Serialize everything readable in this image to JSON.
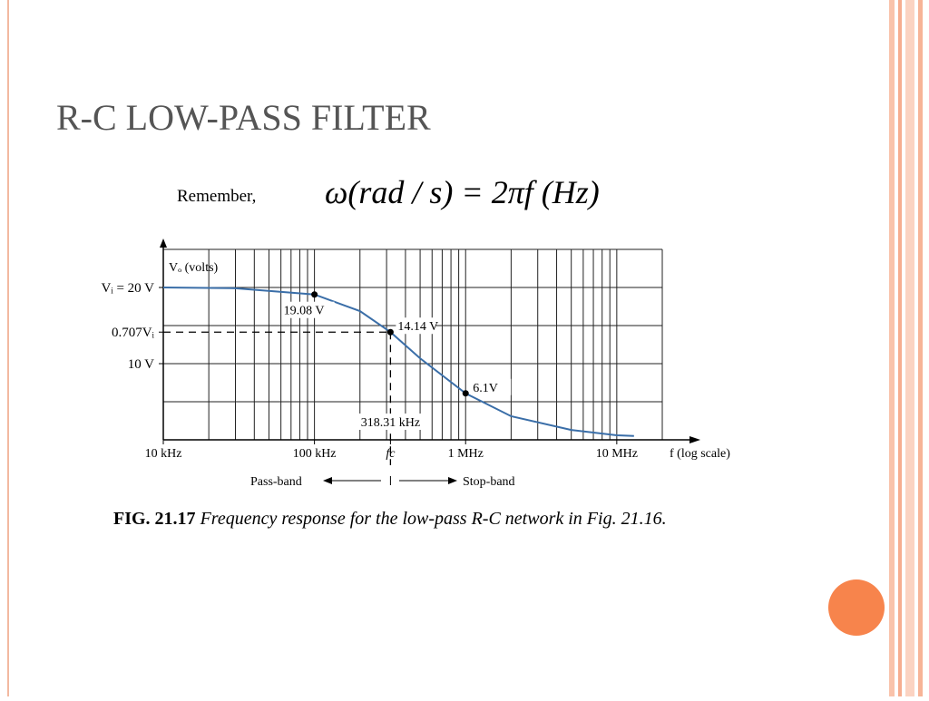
{
  "slide": {
    "title": "R-C LOW-PASS FILTER",
    "remember": "Remember,",
    "formula": "ω(rad / s) = 2πf (Hz)",
    "caption_label": "FIG. 21.17",
    "caption_text": "Frequency response for the low-pass R-C network in Fig. 21.16."
  },
  "chart_data": {
    "type": "line",
    "log_x": true,
    "grid": true,
    "x_label": "f (log scale)",
    "y_label": "Vₒ (volts)",
    "xlim": [
      10000,
      20000000
    ],
    "ylim": [
      0,
      25
    ],
    "xticks": [
      {
        "value": 10000,
        "label": "10 kHz"
      },
      {
        "value": 100000,
        "label": "100 kHz"
      },
      {
        "value": 318310,
        "label": "fc",
        "dashed": true
      },
      {
        "value": 1000000,
        "label": "1 MHz"
      },
      {
        "value": 10000000,
        "label": "10 MHz"
      }
    ],
    "yticks": [
      {
        "value": 20,
        "label": "Vᵢ = 20 V"
      },
      {
        "value": 14.14,
        "label": "0.707Vᵢ",
        "dashed": true
      },
      {
        "value": 10,
        "label": "10 V"
      }
    ],
    "xgrid": [
      10000,
      20000,
      30000,
      40000,
      50000,
      60000,
      70000,
      80000,
      90000,
      100000,
      200000,
      300000,
      400000,
      500000,
      600000,
      700000,
      800000,
      900000,
      1000000,
      2000000,
      3000000,
      4000000,
      5000000,
      6000000,
      7000000,
      8000000,
      9000000,
      10000000,
      20000000
    ],
    "ygrid": [
      0,
      5,
      10,
      15,
      20,
      25
    ],
    "fc_label": {
      "value": 318310,
      "label": "318.31 kHz"
    },
    "band_labels": [
      "Pass-band",
      "Stop-band"
    ],
    "series": [
      {
        "name": "Vo",
        "color": "#3a6ea8",
        "x": [
          10000,
          30000,
          100000,
          200000,
          318310,
          500000,
          1000000,
          2000000,
          5000000,
          10000000,
          13000000
        ],
        "values": [
          20,
          19.9,
          19.08,
          16.9,
          14.14,
          10.7,
          6.1,
          3.1,
          1.3,
          0.6,
          0.5
        ],
        "value_labels": [
          null,
          null,
          "19.08 V",
          null,
          "14.14 V",
          null,
          "6.1V",
          null,
          null,
          null,
          null
        ]
      }
    ]
  }
}
